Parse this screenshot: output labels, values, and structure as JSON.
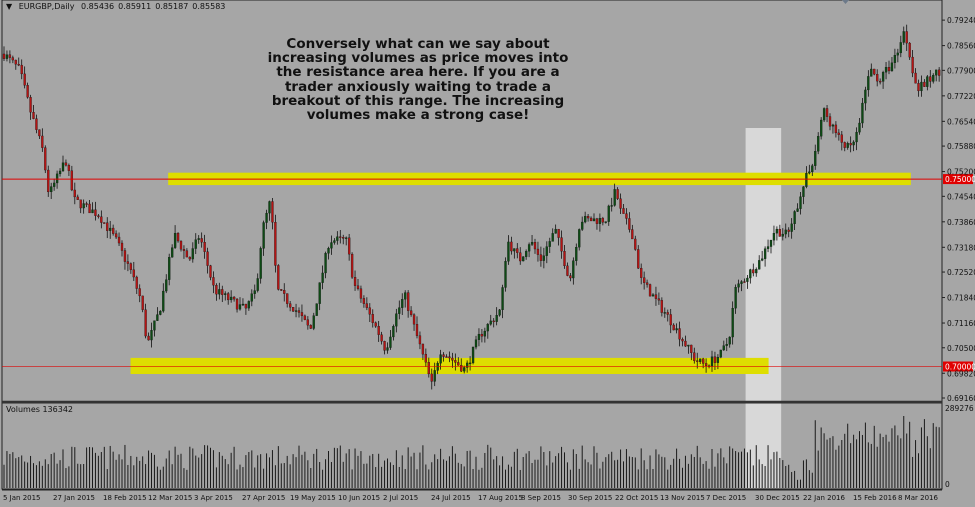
{
  "chart_data": {
    "type": "candlestick",
    "symbol": "EURGBP,Daily",
    "ohlc": [
      "0.85436",
      "0.85911",
      "0.85187",
      "0.85583"
    ],
    "ylim": [
      0.6908,
      0.7951
    ],
    "y_ticks": [
      "0.79240",
      "0.78560",
      "0.77900",
      "0.77220",
      "0.76540",
      "0.75880",
      "0.75200",
      "0.74540",
      "0.73860",
      "0.73180",
      "0.72520",
      "0.71840",
      "0.71160",
      "0.70500",
      "0.69820",
      "0.69160"
    ],
    "x_ticks": [
      "5 Jan 2015",
      "27 Jan 2015",
      "18 Feb 2015",
      "12 Mar 2015",
      "3 Apr 2015",
      "27 Apr 2015",
      "19 May 2015",
      "10 Jun 2015",
      "2 Jul 2015",
      "24 Jul 2015",
      "17 Aug 2015",
      "8 Sep 2015",
      "30 Sep 2015",
      "22 Oct 2015",
      "13 Nov 2015",
      "7 Dec 2015",
      "30 Dec 2015",
      "22 Jan 2016",
      "15 Feb 2016",
      "8 Mar 2016"
    ],
    "price_path": [
      [
        "2015-01-05",
        0.7831
      ],
      [
        "2015-01-12",
        0.7791
      ],
      [
        "2015-01-17",
        0.7684
      ],
      [
        "2015-01-23",
        0.7577
      ],
      [
        "2015-01-26",
        0.7457
      ],
      [
        "2015-02-03",
        0.7551
      ],
      [
        "2015-02-07",
        0.7444
      ],
      [
        "2015-02-19",
        0.7404
      ],
      [
        "2015-02-27",
        0.7337
      ],
      [
        "2015-03-06",
        0.7257
      ],
      [
        "2015-03-11",
        0.7177
      ],
      [
        "2015-03-14",
        0.7057
      ],
      [
        "2015-03-20",
        0.7151
      ],
      [
        "2015-03-27",
        0.7351
      ],
      [
        "2015-04-03",
        0.7284
      ],
      [
        "2015-04-08",
        0.7351
      ],
      [
        "2015-04-15",
        0.7204
      ],
      [
        "2015-04-30",
        0.7151
      ],
      [
        "2015-05-05",
        0.7204
      ],
      [
        "2015-05-08",
        0.7364
      ],
      [
        "2015-05-12",
        0.7444
      ],
      [
        "2015-05-15",
        0.7204
      ],
      [
        "2015-05-24",
        0.7151
      ],
      [
        "2015-05-31",
        0.7097
      ],
      [
        "2015-06-09",
        0.7337
      ],
      [
        "2015-06-17",
        0.7337
      ],
      [
        "2015-06-21",
        0.7217
      ],
      [
        "2015-07-02",
        0.7097
      ],
      [
        "2015-07-06",
        0.7044
      ],
      [
        "2015-07-10",
        0.7124
      ],
      [
        "2015-07-15",
        0.7191
      ],
      [
        "2015-07-20",
        0.7097
      ],
      [
        "2015-07-28",
        0.6951
      ],
      [
        "2015-08-01",
        0.7044
      ],
      [
        "2015-08-13",
        0.6991
      ],
      [
        "2015-08-20",
        0.7084
      ],
      [
        "2015-08-30",
        0.7151
      ],
      [
        "2015-09-02",
        0.7337
      ],
      [
        "2015-09-08",
        0.7284
      ],
      [
        "2015-09-13",
        0.7337
      ],
      [
        "2015-09-18",
        0.7284
      ],
      [
        "2015-09-25",
        0.7364
      ],
      [
        "2015-10-02",
        0.7231
      ],
      [
        "2015-10-07",
        0.7391
      ],
      [
        "2015-10-19",
        0.7391
      ],
      [
        "2015-10-24",
        0.7471
      ],
      [
        "2015-10-26",
        0.7417
      ],
      [
        "2015-11-01",
        0.7351
      ],
      [
        "2015-11-05",
        0.7231
      ],
      [
        "2015-11-19",
        0.7124
      ],
      [
        "2015-12-01",
        0.7017
      ],
      [
        "2015-12-06",
        0.7004
      ],
      [
        "2015-12-13",
        0.7031
      ],
      [
        "2015-12-17",
        0.7071
      ],
      [
        "2015-12-20",
        0.7204
      ],
      [
        "2016-01-01",
        0.7284
      ],
      [
        "2016-01-08",
        0.7364
      ],
      [
        "2016-01-15",
        0.7351
      ],
      [
        "2016-01-20",
        0.7457
      ],
      [
        "2016-01-27",
        0.7564
      ],
      [
        "2016-01-31",
        0.7684
      ],
      [
        "2016-02-08",
        0.7604
      ],
      [
        "2016-02-13",
        0.7577
      ],
      [
        "2016-02-17",
        0.7631
      ],
      [
        "2016-02-22",
        0.7791
      ],
      [
        "2016-02-27",
        0.7764
      ],
      [
        "2016-03-05",
        0.7817
      ],
      [
        "2016-03-10",
        0.7897
      ],
      [
        "2016-03-16",
        0.7737
      ],
      [
        "2016-03-27",
        0.7791
      ]
    ],
    "levels": [
      {
        "price": 0.75,
        "label": "0.75000",
        "color": "#e00000"
      },
      {
        "price": 0.7,
        "label": "0.70000",
        "color": "#e00000"
      }
    ],
    "zones": [
      {
        "from_date": "2015-03-24",
        "to_date": "2016-03-13",
        "low": 0.7484,
        "high": 0.7517,
        "color": "#dede00"
      },
      {
        "from_date": "2015-03-06",
        "to_date": "2015-12-36",
        "low": 0.698,
        "high": 0.7023,
        "color": "#dede00"
      }
    ],
    "highlight": {
      "from_date": "2015-12-25",
      "to_date": "2016-01-11",
      "color": "#d8d8d8"
    },
    "annotation": "Conversely what can we say about increasing volumes as price moves into the resistance area here. If you are a trader anxiously waiting to trade a breakout of this range. The increasing volumes make a strong case!",
    "volume": {
      "label": "Volumes 136342",
      "max_label": "289276",
      "min_label": "0",
      "max": 289276
    },
    "colors": {
      "background": "#a6a6a6",
      "bull": "#0d4a14",
      "bear": "#b51414",
      "wick": "#111111"
    }
  }
}
